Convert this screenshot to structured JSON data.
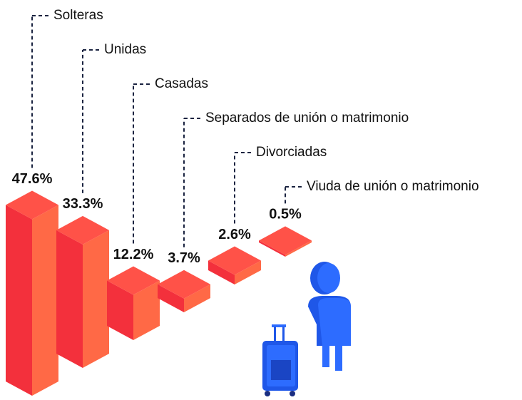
{
  "chart_data": {
    "type": "bar",
    "categories": [
      "Solteras",
      "Unidas",
      "Casadas",
      "Separados de unión o matrimonio",
      "Divorciadas",
      "Viuda de unión o matrimonio"
    ],
    "values": [
      47.6,
      33.3,
      12.2,
      3.7,
      2.6,
      0.5
    ],
    "value_labels": [
      "47.6%",
      "33.3%",
      "12.2%",
      "3.7%",
      "2.6%",
      "0.5%"
    ],
    "color": "#ff5248"
  }
}
